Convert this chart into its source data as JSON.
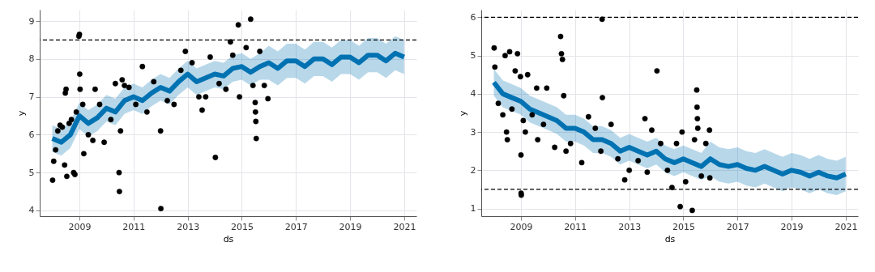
{
  "chart_data": [
    {
      "type": "line",
      "xlabel": "ds",
      "ylabel": "y",
      "xlim": [
        "2007-07-15",
        "2021-06-15"
      ],
      "ylim": [
        3.85,
        9.3
      ],
      "xticks": [
        {
          "value": "2009-01-01",
          "label": "2009"
        },
        {
          "value": "2011-01-01",
          "label": "2011"
        },
        {
          "value": "2013-01-01",
          "label": "2013"
        },
        {
          "value": "2015-01-01",
          "label": "2015"
        },
        {
          "value": "2017-01-01",
          "label": "2017"
        },
        {
          "value": "2019-01-01",
          "label": "2019"
        },
        {
          "value": "2021-01-01",
          "label": "2021"
        }
      ],
      "yticks": [
        4,
        5,
        6,
        7,
        8,
        9
      ],
      "grid": true,
      "ref_lines": [
        {
          "axis": "y",
          "value": 8.5,
          "color": "#000000",
          "line_style": "dashed"
        }
      ],
      "series": [
        {
          "color": "#0072b2",
          "x": [
            "2008-01-01",
            "2008-05-01",
            "2008-09-01",
            "2009-01-01",
            "2009-05-01",
            "2009-09-01",
            "2010-01-01",
            "2010-05-01",
            "2010-09-01",
            "2011-01-01",
            "2011-05-01",
            "2011-09-01",
            "2012-01-01",
            "2012-05-01",
            "2012-09-01",
            "2013-01-01",
            "2013-05-01",
            "2013-09-01",
            "2014-01-01",
            "2014-05-01",
            "2014-09-01",
            "2015-01-01",
            "2015-05-01",
            "2015-09-01",
            "2016-01-01",
            "2016-05-01",
            "2016-09-01",
            "2017-01-01",
            "2017-05-01",
            "2017-09-01",
            "2018-01-01",
            "2018-05-01",
            "2018-09-01",
            "2019-01-01",
            "2019-05-01",
            "2019-09-01",
            "2020-01-01",
            "2020-05-01",
            "2020-09-01",
            "2020-12-31"
          ],
          "values": [
            5.9,
            5.8,
            6.0,
            6.5,
            6.3,
            6.45,
            6.7,
            6.6,
            6.9,
            7.0,
            6.9,
            7.1,
            7.25,
            7.15,
            7.4,
            7.6,
            7.4,
            7.5,
            7.6,
            7.55,
            7.75,
            7.8,
            7.65,
            7.8,
            7.9,
            7.75,
            7.95,
            7.95,
            7.8,
            8.0,
            8.0,
            7.85,
            8.05,
            8.05,
            7.9,
            8.1,
            8.1,
            7.95,
            8.15,
            8.05
          ],
          "lower": [
            5.55,
            5.45,
            5.65,
            6.15,
            5.95,
            6.1,
            6.35,
            6.25,
            6.55,
            6.65,
            6.55,
            6.75,
            6.9,
            6.8,
            7.05,
            7.25,
            7.05,
            7.15,
            7.25,
            7.2,
            7.4,
            7.45,
            7.3,
            7.45,
            7.45,
            7.3,
            7.5,
            7.5,
            7.35,
            7.55,
            7.55,
            7.4,
            7.6,
            7.6,
            7.45,
            7.65,
            7.65,
            7.5,
            7.7,
            7.6
          ],
          "upper": [
            6.25,
            6.15,
            6.35,
            6.85,
            6.65,
            6.8,
            7.05,
            6.95,
            7.25,
            7.35,
            7.25,
            7.45,
            7.6,
            7.5,
            7.75,
            7.95,
            7.75,
            7.85,
            7.95,
            7.9,
            8.1,
            8.15,
            8.0,
            8.15,
            8.35,
            8.2,
            8.4,
            8.4,
            8.25,
            8.45,
            8.45,
            8.3,
            8.5,
            8.5,
            8.35,
            8.55,
            8.55,
            8.4,
            8.6,
            8.5
          ]
        },
        {
          "type": "scatter",
          "color": "#000000",
          "x": [
            "2008-01-05",
            "2008-01-20",
            "2008-02-15",
            "2008-03-15",
            "2008-04-15",
            "2008-05-15",
            "2008-06-15",
            "2008-06-25",
            "2008-07-05",
            "2008-07-15",
            "2008-08-15",
            "2008-09-15",
            "2008-10-15",
            "2008-11-01",
            "2008-11-20",
            "2008-12-25",
            "2009-01-01",
            "2009-01-05",
            "2009-01-10",
            "2009-02-15",
            "2009-03-01",
            "2009-05-01",
            "2009-07-01",
            "2009-08-01",
            "2009-10-01",
            "2009-12-01",
            "2010-03-01",
            "2010-05-01",
            "2010-06-20",
            "2010-06-25",
            "2010-07-10",
            "2010-08-01",
            "2010-09-01",
            "2010-11-01",
            "2011-02-01",
            "2011-05-01",
            "2011-07-01",
            "2011-10-01",
            "2012-01-01",
            "2012-01-05",
            "2012-04-01",
            "2012-07-01",
            "2012-10-01",
            "2012-12-01",
            "2013-03-01",
            "2013-06-01",
            "2013-07-15",
            "2013-09-01",
            "2013-11-01",
            "2014-01-10",
            "2014-03-01",
            "2014-06-01",
            "2014-08-01",
            "2014-09-01",
            "2014-11-15",
            "2014-12-01",
            "2015-03-01",
            "2015-05-01",
            "2015-06-01",
            "2015-07-01",
            "2015-07-05",
            "2015-07-10",
            "2015-07-15",
            "2015-09-01",
            "2015-11-01",
            "2015-12-20"
          ],
          "values": [
            4.8,
            5.3,
            5.6,
            6.1,
            6.25,
            6.2,
            5.2,
            7.1,
            7.2,
            4.9,
            6.3,
            6.4,
            5.0,
            4.95,
            6.6,
            8.6,
            8.65,
            7.6,
            7.2,
            6.8,
            5.5,
            6.0,
            5.85,
            7.2,
            6.8,
            5.8,
            6.4,
            7.35,
            5.0,
            4.5,
            6.1,
            7.45,
            7.3,
            7.25,
            6.8,
            7.8,
            6.6,
            7.4,
            6.1,
            4.05,
            6.9,
            6.8,
            7.7,
            8.2,
            7.9,
            7.0,
            6.65,
            7.0,
            8.05,
            5.4,
            7.35,
            7.2,
            8.45,
            8.1,
            8.9,
            7.0,
            8.3,
            9.05,
            7.3,
            6.85,
            6.6,
            6.35,
            5.9,
            8.2,
            7.3,
            6.95
          ]
        }
      ]
    },
    {
      "type": "line",
      "xlabel": "ds",
      "ylabel": "y",
      "xlim": [
        "2007-07-15",
        "2021-06-15"
      ],
      "ylim": [
        0.8,
        6.2
      ],
      "xticks": [
        {
          "value": "2009-01-01",
          "label": "2009"
        },
        {
          "value": "2011-01-01",
          "label": "2011"
        },
        {
          "value": "2013-01-01",
          "label": "2013"
        },
        {
          "value": "2015-01-01",
          "label": "2015"
        },
        {
          "value": "2017-01-01",
          "label": "2017"
        },
        {
          "value": "2019-01-01",
          "label": "2019"
        },
        {
          "value": "2021-01-01",
          "label": "2021"
        }
      ],
      "yticks": [
        1,
        2,
        3,
        4,
        5,
        6
      ],
      "grid": true,
      "ref_lines": [
        {
          "axis": "y",
          "value": 6,
          "color": "#000000",
          "line_style": "dashed"
        },
        {
          "axis": "y",
          "value": 1.5,
          "color": "#000000",
          "line_style": "dashed"
        }
      ],
      "series": [
        {
          "color": "#0072b2",
          "x": [
            "2008-01-01",
            "2008-05-01",
            "2008-09-01",
            "2009-01-01",
            "2009-05-01",
            "2009-09-01",
            "2010-01-01",
            "2010-05-01",
            "2010-09-01",
            "2011-01-01",
            "2011-05-01",
            "2011-09-01",
            "2012-01-01",
            "2012-05-01",
            "2012-09-01",
            "2013-01-01",
            "2013-05-01",
            "2013-09-01",
            "2014-01-01",
            "2014-05-01",
            "2014-09-01",
            "2015-01-01",
            "2015-05-01",
            "2015-09-01",
            "2016-01-01",
            "2016-05-01",
            "2016-09-01",
            "2017-01-01",
            "2017-05-01",
            "2017-09-01",
            "2018-01-01",
            "2018-05-01",
            "2018-09-01",
            "2019-01-01",
            "2019-05-01",
            "2019-09-01",
            "2020-01-01",
            "2020-05-01",
            "2020-09-01",
            "2020-12-31"
          ],
          "values": [
            4.3,
            4.0,
            3.9,
            3.8,
            3.6,
            3.5,
            3.4,
            3.3,
            3.1,
            3.1,
            3.0,
            2.8,
            2.8,
            2.7,
            2.5,
            2.6,
            2.5,
            2.4,
            2.5,
            2.3,
            2.2,
            2.3,
            2.2,
            2.1,
            2.3,
            2.15,
            2.1,
            2.15,
            2.05,
            2.0,
            2.1,
            2.0,
            1.9,
            2.0,
            1.95,
            1.85,
            1.95,
            1.85,
            1.8,
            1.9
          ],
          "lower": [
            3.95,
            3.65,
            3.55,
            3.45,
            3.25,
            3.15,
            3.05,
            2.95,
            2.75,
            2.75,
            2.65,
            2.45,
            2.45,
            2.35,
            2.15,
            2.25,
            2.15,
            2.05,
            2.15,
            1.95,
            1.85,
            1.95,
            1.85,
            1.75,
            1.85,
            1.7,
            1.65,
            1.7,
            1.6,
            1.55,
            1.65,
            1.55,
            1.45,
            1.55,
            1.5,
            1.4,
            1.5,
            1.4,
            1.35,
            1.45
          ],
          "upper": [
            4.65,
            4.35,
            4.25,
            4.15,
            3.95,
            3.85,
            3.75,
            3.65,
            3.45,
            3.45,
            3.35,
            3.15,
            3.15,
            3.05,
            2.85,
            2.95,
            2.85,
            2.75,
            2.85,
            2.65,
            2.55,
            2.65,
            2.55,
            2.45,
            2.75,
            2.6,
            2.55,
            2.6,
            2.5,
            2.45,
            2.55,
            2.45,
            2.35,
            2.45,
            2.4,
            2.3,
            2.4,
            2.3,
            2.25,
            2.35
          ]
        },
        {
          "type": "scatter",
          "color": "#000000",
          "x": [
            "2008-01-05",
            "2008-01-15",
            "2008-03-01",
            "2008-05-01",
            "2008-06-01",
            "2008-06-20",
            "2008-07-01",
            "2008-08-01",
            "2008-09-01",
            "2008-10-15",
            "2008-11-15",
            "2008-12-25",
            "2009-01-01",
            "2009-01-03",
            "2009-01-05",
            "2009-02-01",
            "2009-03-01",
            "2009-04-01",
            "2009-06-01",
            "2009-08-01",
            "2009-08-15",
            "2009-11-01",
            "2009-12-15",
            "2010-04-01",
            "2010-06-20",
            "2010-07-01",
            "2010-07-15",
            "2010-08-01",
            "2010-09-01",
            "2010-11-01",
            "2011-04-01",
            "2011-07-01",
            "2011-10-01",
            "2011-12-15",
            "2012-01-01",
            "2012-01-05",
            "2012-05-01",
            "2012-08-01",
            "2012-11-01",
            "2013-01-01",
            "2013-05-01",
            "2013-08-01",
            "2013-09-01",
            "2013-11-01",
            "2014-01-10",
            "2014-03-01",
            "2014-06-01",
            "2014-08-01",
            "2014-10-01",
            "2014-11-20",
            "2014-12-15",
            "2015-02-01",
            "2015-05-01",
            "2015-06-01",
            "2015-07-01",
            "2015-07-05",
            "2015-07-10",
            "2015-07-15",
            "2015-09-01",
            "2015-11-01",
            "2015-12-20",
            "2015-12-25"
          ],
          "values": [
            5.2,
            4.7,
            3.75,
            3.45,
            5.0,
            3.0,
            2.8,
            5.1,
            3.6,
            4.6,
            5.05,
            4.45,
            2.4,
            1.4,
            1.35,
            3.3,
            3.0,
            4.5,
            3.45,
            4.15,
            2.8,
            3.2,
            4.15,
            2.6,
            5.5,
            5.05,
            4.9,
            3.95,
            2.5,
            2.7,
            2.2,
            3.4,
            3.1,
            2.5,
            5.95,
            3.9,
            3.2,
            2.3,
            1.75,
            2.0,
            2.25,
            3.35,
            1.95,
            3.05,
            4.6,
            2.7,
            2.0,
            1.55,
            2.7,
            1.05,
            3.0,
            1.7,
            0.95,
            2.8,
            4.1,
            3.65,
            3.35,
            3.1,
            1.85,
            2.7,
            3.05,
            1.8
          ]
        }
      ]
    }
  ]
}
